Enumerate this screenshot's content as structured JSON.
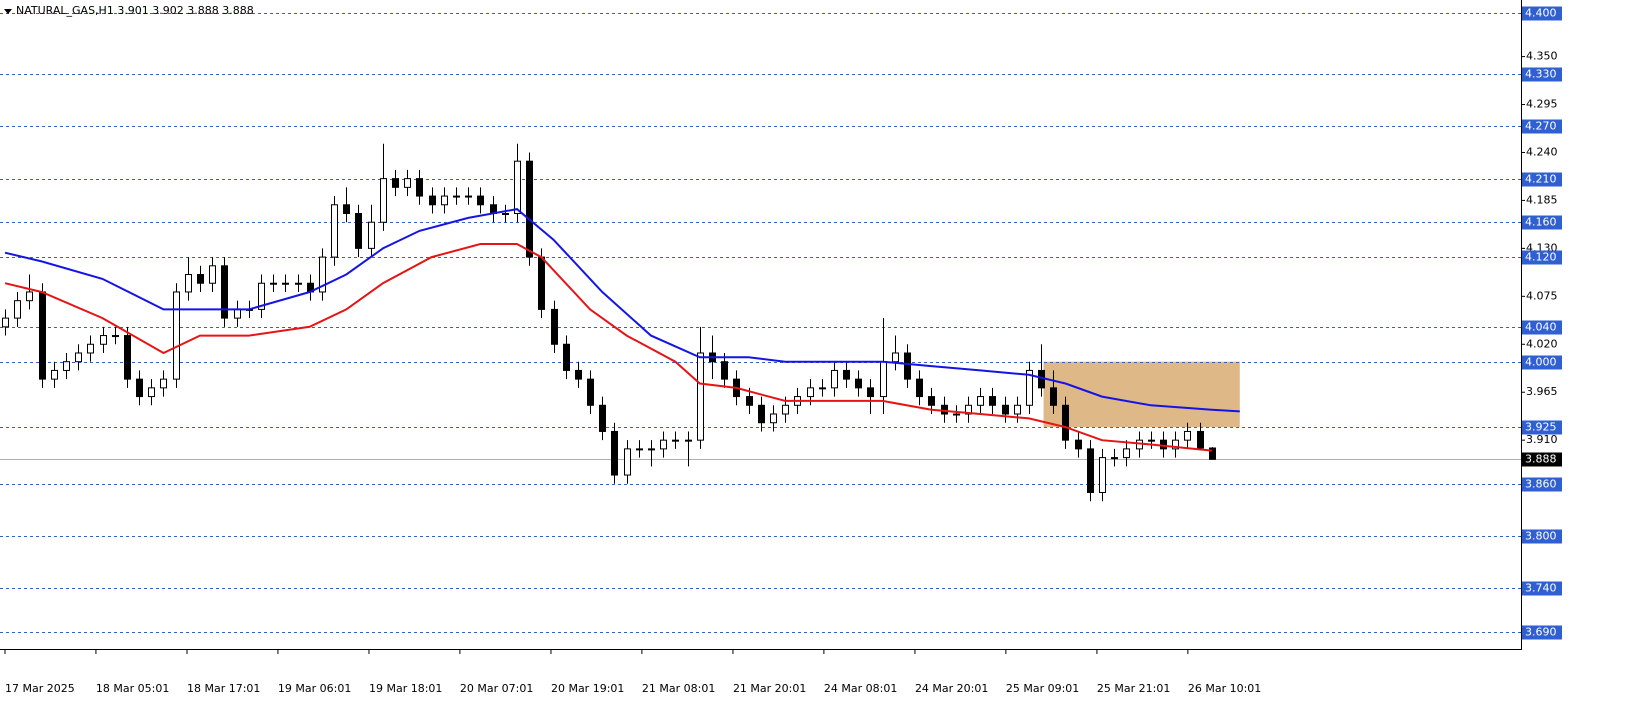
{
  "chart_data": {
    "type": "candlestick",
    "title": "NATURAL_GAS,H1  3.901 3.902 3.888 3.888",
    "xlim": [
      -0.41,
      124.37
    ],
    "ylim": [
      3.6716,
      4.4149
    ],
    "xticks": [
      {
        "value": 0,
        "label": "17 Mar 2025"
      },
      {
        "value": 7.46,
        "label": "18 Mar 05:01"
      },
      {
        "value": 14.93,
        "label": "18 Mar 17:01"
      },
      {
        "value": 22.39,
        "label": "19 Mar 06:01"
      },
      {
        "value": 29.86,
        "label": "19 Mar 18:01"
      },
      {
        "value": 37.32,
        "label": "20 Mar 07:01"
      },
      {
        "value": 44.79,
        "label": "20 Mar 19:01"
      },
      {
        "value": 52.25,
        "label": "21 Mar 08:01"
      },
      {
        "value": 59.72,
        "label": "21 Mar 20:01"
      },
      {
        "value": 67.18,
        "label": "24 Mar 08:01"
      },
      {
        "value": 74.65,
        "label": "24 Mar 20:01"
      },
      {
        "value": 82.11,
        "label": "25 Mar 09:01"
      },
      {
        "value": 89.58,
        "label": "25 Mar 21:01"
      },
      {
        "value": 97.04,
        "label": "26 Mar 10:01"
      }
    ],
    "yticks": [
      {
        "value": 4.35,
        "label": "4.350"
      },
      {
        "value": 4.295,
        "label": "4.295"
      },
      {
        "value": 4.24,
        "label": "4.240"
      },
      {
        "value": 4.185,
        "label": "4.185"
      },
      {
        "value": 4.13,
        "label": "4.130"
      },
      {
        "value": 4.075,
        "label": "4.075"
      },
      {
        "value": 4.02,
        "label": "4.020"
      },
      {
        "value": 3.965,
        "label": "3.965"
      },
      {
        "value": 3.91,
        "label": "3.910"
      }
    ],
    "levels": [
      {
        "value": 4.4,
        "label": "4.400"
      },
      {
        "value": 4.33,
        "label": "4.330"
      },
      {
        "value": 4.27,
        "label": "4.270"
      },
      {
        "value": 4.21,
        "label": "4.210"
      },
      {
        "value": 4.16,
        "label": "4.160"
      },
      {
        "value": 4.12,
        "label": "4.120"
      },
      {
        "value": 4.04,
        "label": "4.040"
      },
      {
        "value": 4.0,
        "label": "4.000"
      },
      {
        "value": 3.925,
        "label": "3.925"
      },
      {
        "value": 3.86,
        "label": "3.860"
      },
      {
        "value": 3.8,
        "label": "3.800"
      },
      {
        "value": 3.74,
        "label": "3.740"
      },
      {
        "value": 3.69,
        "label": "3.690"
      }
    ],
    "level_color": "#2f5fd0",
    "current_price": {
      "value": 3.888,
      "label": "3.888"
    },
    "zone": {
      "x": [
        85.2,
        101.3
      ],
      "y": [
        3.925,
        4.0
      ],
      "color": "#deb887"
    },
    "open": [
      4.04,
      4.05,
      4.07,
      4.08,
      3.98,
      3.99,
      4.0,
      4.01,
      4.02,
      4.03,
      4.03,
      3.98,
      3.96,
      3.97,
      3.98,
      4.08,
      4.1,
      4.09,
      4.11,
      4.05,
      4.06,
      4.06,
      4.09,
      4.09,
      4.09,
      4.09,
      4.08,
      4.12,
      4.18,
      4.17,
      4.13,
      4.16,
      4.21,
      4.2,
      4.21,
      4.19,
      4.18,
      4.19,
      4.19,
      4.19,
      4.18,
      4.17,
      4.17,
      4.23,
      4.12,
      4.06,
      4.02,
      3.99,
      3.98,
      3.95,
      3.92,
      3.87,
      3.9,
      3.9,
      3.9,
      3.91,
      3.91,
      3.91,
      4.01,
      4.0,
      3.98,
      3.96,
      3.95,
      3.93,
      3.94,
      3.95,
      3.96,
      3.97,
      3.97,
      3.99,
      3.98,
      3.97,
      3.96,
      4.0,
      4.01,
      3.98,
      3.96,
      3.95,
      3.94,
      3.94,
      3.95,
      3.96,
      3.95,
      3.94,
      3.95,
      3.99,
      3.97,
      3.95,
      3.91,
      3.9,
      3.85,
      3.89,
      3.89,
      3.9,
      3.91,
      3.91,
      3.9,
      3.91,
      3.92,
      3.901
    ],
    "high": [
      4.06,
      4.08,
      4.1,
      4.09,
      4.0,
      4.01,
      4.02,
      4.03,
      4.04,
      4.04,
      4.04,
      3.99,
      3.98,
      3.99,
      4.09,
      4.12,
      4.11,
      4.12,
      4.12,
      4.07,
      4.07,
      4.1,
      4.1,
      4.1,
      4.1,
      4.1,
      4.13,
      4.19,
      4.2,
      4.18,
      4.18,
      4.25,
      4.22,
      4.22,
      4.22,
      4.2,
      4.2,
      4.2,
      4.2,
      4.2,
      4.19,
      4.18,
      4.25,
      4.24,
      4.13,
      4.07,
      4.03,
      4.0,
      3.99,
      3.96,
      3.93,
      3.91,
      3.91,
      3.91,
      3.92,
      3.92,
      3.92,
      4.04,
      4.03,
      4.01,
      3.99,
      3.97,
      3.96,
      3.95,
      3.96,
      3.97,
      3.98,
      3.98,
      4.0,
      4.0,
      3.99,
      3.98,
      4.05,
      4.03,
      4.02,
      3.99,
      3.97,
      3.96,
      3.95,
      3.96,
      3.97,
      3.97,
      3.96,
      3.96,
      4.0,
      4.02,
      3.99,
      3.96,
      3.92,
      3.91,
      3.9,
      3.9,
      3.91,
      3.92,
      3.92,
      3.92,
      3.92,
      3.93,
      3.93,
      3.902
    ],
    "low": [
      4.03,
      4.04,
      4.06,
      3.97,
      3.97,
      3.98,
      3.99,
      4.0,
      4.01,
      4.02,
      3.97,
      3.95,
      3.95,
      3.96,
      3.97,
      4.07,
      4.08,
      4.08,
      4.04,
      4.04,
      4.05,
      4.05,
      4.08,
      4.08,
      4.08,
      4.07,
      4.07,
      4.11,
      4.16,
      4.12,
      4.12,
      4.15,
      4.19,
      4.19,
      4.18,
      4.17,
      4.17,
      4.18,
      4.18,
      4.17,
      4.16,
      4.16,
      4.16,
      4.11,
      4.05,
      4.01,
      3.98,
      3.97,
      3.94,
      3.91,
      3.86,
      3.86,
      3.89,
      3.88,
      3.89,
      3.9,
      3.88,
      3.9,
      3.98,
      3.97,
      3.95,
      3.94,
      3.92,
      3.92,
      3.93,
      3.94,
      3.95,
      3.96,
      3.96,
      3.97,
      3.96,
      3.94,
      3.94,
      3.99,
      3.97,
      3.95,
      3.94,
      3.93,
      3.93,
      3.93,
      3.94,
      3.94,
      3.93,
      3.93,
      3.94,
      3.96,
      3.94,
      3.9,
      3.89,
      3.84,
      3.84,
      3.88,
      3.88,
      3.89,
      3.9,
      3.89,
      3.89,
      3.9,
      3.9,
      3.888
    ],
    "close": [
      4.05,
      4.07,
      4.08,
      3.98,
      3.99,
      4.0,
      4.01,
      4.02,
      4.03,
      4.03,
      3.98,
      3.96,
      3.97,
      3.98,
      4.08,
      4.1,
      4.09,
      4.11,
      4.05,
      4.06,
      4.06,
      4.09,
      4.09,
      4.09,
      4.09,
      4.08,
      4.12,
      4.18,
      4.17,
      4.13,
      4.16,
      4.21,
      4.2,
      4.21,
      4.19,
      4.18,
      4.19,
      4.19,
      4.19,
      4.18,
      4.17,
      4.17,
      4.23,
      4.12,
      4.06,
      4.02,
      3.99,
      3.98,
      3.95,
      3.92,
      3.87,
      3.9,
      3.9,
      3.9,
      3.91,
      3.91,
      3.91,
      4.01,
      4.0,
      3.98,
      3.96,
      3.95,
      3.93,
      3.94,
      3.95,
      3.96,
      3.97,
      3.97,
      3.99,
      3.98,
      3.97,
      3.96,
      4.0,
      4.01,
      3.98,
      3.96,
      3.95,
      3.94,
      3.94,
      3.95,
      3.96,
      3.95,
      3.94,
      3.95,
      3.99,
      3.97,
      3.95,
      3.91,
      3.9,
      3.85,
      3.89,
      3.89,
      3.9,
      3.91,
      3.91,
      3.9,
      3.91,
      3.92,
      3.901,
      3.888
    ],
    "lines": [
      {
        "color": "#1414e6",
        "x": [
          0,
          3,
          8,
          13,
          16,
          20,
          25,
          28,
          31,
          34,
          38,
          42,
          45,
          49,
          53,
          57,
          61,
          64,
          68,
          72,
          76,
          80,
          84,
          87,
          90,
          94,
          99,
          101.3
        ],
        "values": [
          4.125,
          4.115,
          4.095,
          4.06,
          4.06,
          4.06,
          4.08,
          4.1,
          4.13,
          4.15,
          4.165,
          4.175,
          4.14,
          4.08,
          4.03,
          4.005,
          4.005,
          4.0,
          4.0,
          4.0,
          3.995,
          3.99,
          3.985,
          3.975,
          3.96,
          3.95,
          3.945,
          3.943
        ]
      },
      {
        "color": "#e61414",
        "x": [
          0,
          3,
          8,
          13,
          16,
          20,
          25,
          28,
          31,
          35,
          39,
          42,
          44,
          48,
          51,
          55,
          57,
          60,
          64,
          68,
          72,
          76,
          80,
          84,
          87,
          90,
          94,
          99
        ],
        "values": [
          4.09,
          4.08,
          4.05,
          4.01,
          4.03,
          4.03,
          4.04,
          4.06,
          4.09,
          4.12,
          4.135,
          4.135,
          4.12,
          4.06,
          4.03,
          4.0,
          3.975,
          3.97,
          3.955,
          3.955,
          3.955,
          3.945,
          3.94,
          3.935,
          3.925,
          3.91,
          3.905,
          3.898
        ]
      }
    ]
  }
}
